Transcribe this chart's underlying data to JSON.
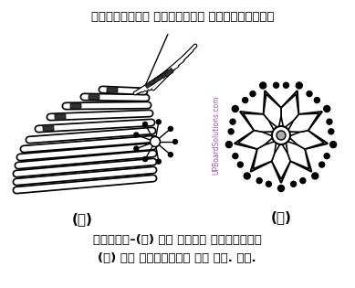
{
  "title_text": "ट्रिपलेट माइक्रो ट्यूब्यूल",
  "label_a": "(अ)",
  "label_b": "(ब)",
  "caption_line1": "चित्र–(अ) एक जोड़ा तारककाय",
  "caption_line2": "(ब) एक तारककाय का टी. एस.",
  "watermark": "UPBoardSolutions.com",
  "bg_color": "#ffffff"
}
